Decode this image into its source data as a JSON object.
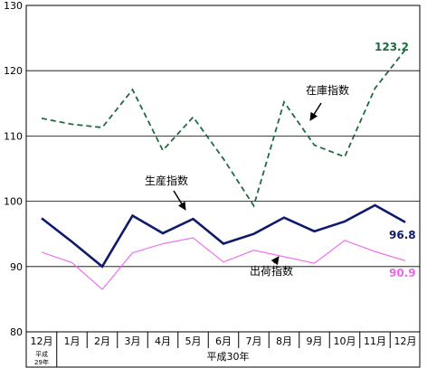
{
  "chart_data": {
    "type": "line",
    "categories": [
      "12月",
      "1月",
      "2月",
      "3月",
      "4月",
      "5月",
      "6月",
      "7月",
      "8月",
      "9月",
      "10月",
      "11月",
      "12月"
    ],
    "era_labels": {
      "first_line1": "平成",
      "first_line2": "29年",
      "second": "平成30年"
    },
    "yticks": [
      80,
      90,
      100,
      110,
      120,
      130
    ],
    "ylim": [
      80,
      130
    ],
    "grid": true,
    "series": [
      {
        "name": "在庫指数",
        "color": "#1f6b3f",
        "style": "dashed",
        "values": [
          112.7,
          111.8,
          111.3,
          117.1,
          107.8,
          112.9,
          106.5,
          99.3,
          115.2,
          108.6,
          106.8,
          117.3,
          123.2
        ],
        "end_label": "123.2"
      },
      {
        "name": "生産指数",
        "color": "#0e1a6b",
        "style": "solid",
        "values": [
          97.4,
          93.8,
          90.0,
          97.8,
          95.1,
          97.3,
          93.5,
          95.0,
          97.5,
          95.4,
          96.9,
          99.4,
          96.8
        ],
        "end_label": "96.8"
      },
      {
        "name": "出荷指数",
        "color": "#ee66ee",
        "style": "solid",
        "values": [
          92.2,
          90.6,
          86.5,
          92.1,
          93.5,
          94.4,
          90.7,
          92.5,
          91.5,
          90.5,
          94.0,
          92.3,
          90.9
        ],
        "end_label": "90.9"
      }
    ]
  }
}
